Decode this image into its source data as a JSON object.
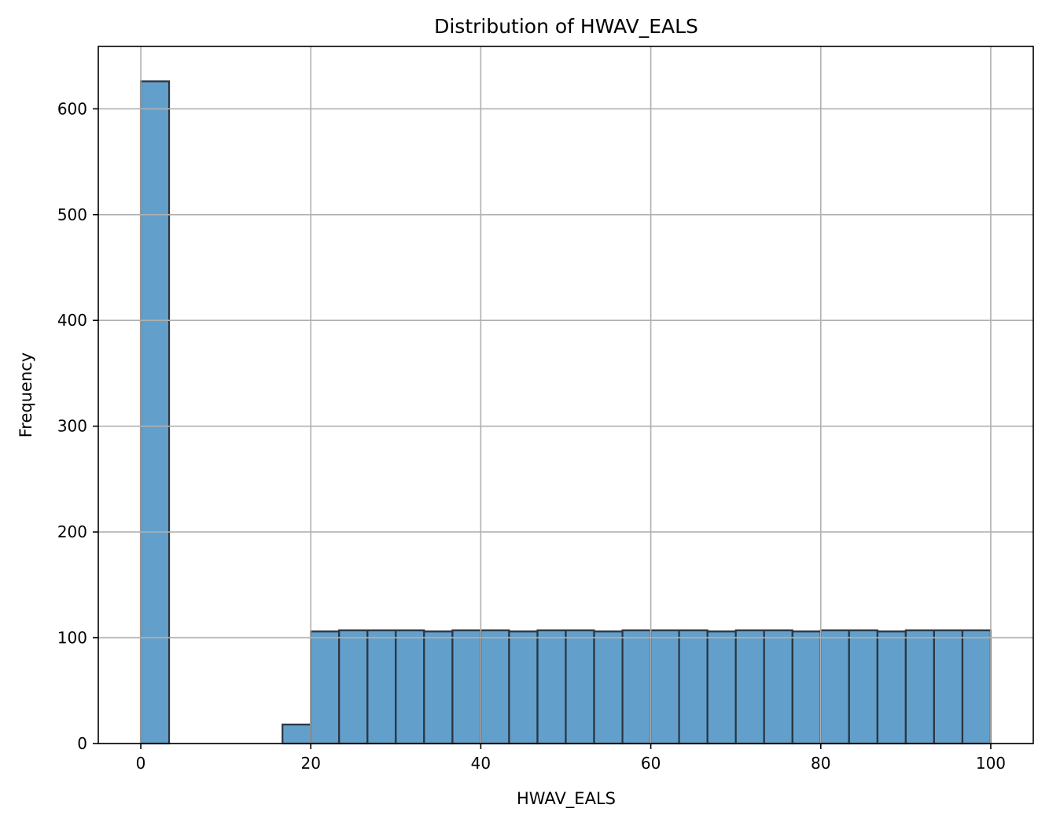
{
  "chart_data": {
    "type": "bar",
    "title": "Distribution of HWAV_EALS",
    "xlabel": "HWAV_EALS",
    "ylabel": "Frequency",
    "xlim": [
      -5,
      105
    ],
    "ylim": [
      0,
      659
    ],
    "grid": true,
    "bar_color": "#62a0cb",
    "edge_color": "#2b3440",
    "grid_color": "#b0b0b0",
    "x_ticks": [
      0,
      20,
      40,
      60,
      80,
      100
    ],
    "x_tick_labels": [
      "0",
      "20",
      "40",
      "60",
      "80",
      "100"
    ],
    "y_ticks": [
      0,
      100,
      200,
      300,
      400,
      500,
      600
    ],
    "y_tick_labels": [
      "0",
      "100",
      "200",
      "300",
      "400",
      "500",
      "600"
    ],
    "bins": [
      {
        "x0": 0.0,
        "x1": 3.33,
        "count": 626
      },
      {
        "x0": 3.33,
        "x1": 6.67,
        "count": 0
      },
      {
        "x0": 6.67,
        "x1": 10.0,
        "count": 0
      },
      {
        "x0": 10.0,
        "x1": 13.33,
        "count": 0
      },
      {
        "x0": 13.33,
        "x1": 16.67,
        "count": 0
      },
      {
        "x0": 16.67,
        "x1": 20.0,
        "count": 18
      },
      {
        "x0": 20.0,
        "x1": 23.33,
        "count": 106
      },
      {
        "x0": 23.33,
        "x1": 26.67,
        "count": 107
      },
      {
        "x0": 26.67,
        "x1": 30.0,
        "count": 107
      },
      {
        "x0": 30.0,
        "x1": 33.33,
        "count": 107
      },
      {
        "x0": 33.33,
        "x1": 36.67,
        "count": 106
      },
      {
        "x0": 36.67,
        "x1": 40.0,
        "count": 107
      },
      {
        "x0": 40.0,
        "x1": 43.33,
        "count": 107
      },
      {
        "x0": 43.33,
        "x1": 46.67,
        "count": 106
      },
      {
        "x0": 46.67,
        "x1": 50.0,
        "count": 107
      },
      {
        "x0": 50.0,
        "x1": 53.33,
        "count": 107
      },
      {
        "x0": 53.33,
        "x1": 56.67,
        "count": 106
      },
      {
        "x0": 56.67,
        "x1": 60.0,
        "count": 107
      },
      {
        "x0": 60.0,
        "x1": 63.33,
        "count": 107
      },
      {
        "x0": 63.33,
        "x1": 66.67,
        "count": 107
      },
      {
        "x0": 66.67,
        "x1": 70.0,
        "count": 106
      },
      {
        "x0": 70.0,
        "x1": 73.33,
        "count": 107
      },
      {
        "x0": 73.33,
        "x1": 76.67,
        "count": 107
      },
      {
        "x0": 76.67,
        "x1": 80.0,
        "count": 106
      },
      {
        "x0": 80.0,
        "x1": 83.33,
        "count": 107
      },
      {
        "x0": 83.33,
        "x1": 86.67,
        "count": 107
      },
      {
        "x0": 86.67,
        "x1": 90.0,
        "count": 106
      },
      {
        "x0": 90.0,
        "x1": 93.33,
        "count": 107
      },
      {
        "x0": 93.33,
        "x1": 96.67,
        "count": 107
      },
      {
        "x0": 96.67,
        "x1": 100.0,
        "count": 107
      }
    ]
  }
}
